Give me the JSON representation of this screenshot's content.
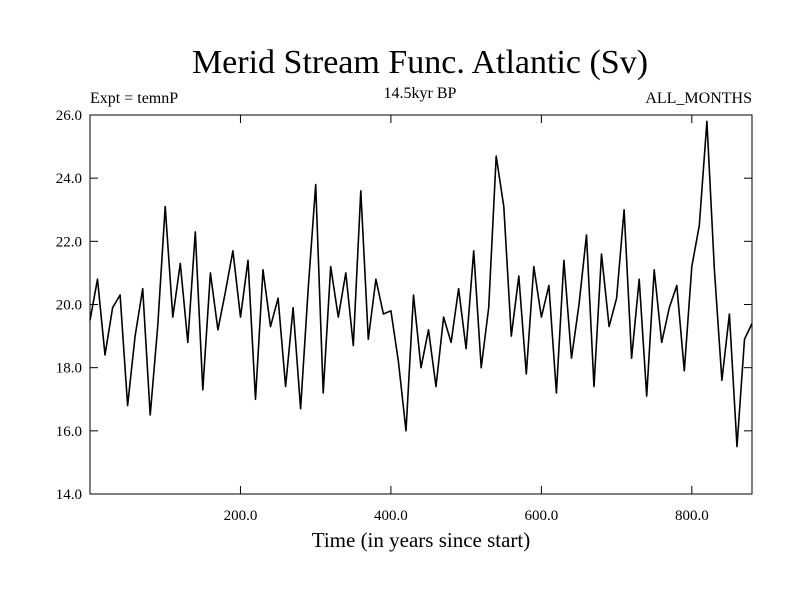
{
  "chart_data": {
    "type": "line",
    "title": "Merid Stream Func. Atlantic (Sv)",
    "subtitle": "14.5kyr BP",
    "left_label": "Expt = temnP",
    "right_label": "ALL_MONTHS",
    "xlabel": "Time (in years since start)",
    "ylabel": "",
    "xlim": [
      0,
      880
    ],
    "ylim": [
      14.0,
      26.0
    ],
    "x_ticks": [
      {
        "value": 200,
        "label": "200.0"
      },
      {
        "value": 400,
        "label": "400.0"
      },
      {
        "value": 600,
        "label": "600.0"
      },
      {
        "value": 800,
        "label": "800.0"
      }
    ],
    "y_ticks": [
      {
        "value": 14,
        "label": "14.0"
      },
      {
        "value": 16,
        "label": "16.0"
      },
      {
        "value": 18,
        "label": "18.0"
      },
      {
        "value": 20,
        "label": "20.0"
      },
      {
        "value": 22,
        "label": "22.0"
      },
      {
        "value": 24,
        "label": "24.0"
      },
      {
        "value": 26,
        "label": "26.0"
      }
    ],
    "grid": false,
    "line_color": "#000000",
    "series": [
      {
        "x": [
          0,
          10,
          20,
          30,
          40,
          50,
          60,
          70,
          80,
          90,
          100,
          110,
          120,
          130,
          140,
          150,
          160,
          170,
          180,
          190,
          200,
          210,
          220,
          230,
          240,
          250,
          260,
          270,
          280,
          290,
          300,
          310,
          320,
          330,
          340,
          350,
          360,
          370,
          380,
          390,
          400,
          410,
          420,
          430,
          440,
          450,
          460,
          470,
          480,
          490,
          500,
          510,
          520,
          530,
          540,
          550,
          560,
          570,
          580,
          590,
          600,
          610,
          620,
          630,
          640,
          650,
          660,
          670,
          680,
          690,
          700,
          710,
          720,
          730,
          740,
          750,
          760,
          770,
          780,
          790,
          800,
          810,
          820,
          830,
          840,
          850,
          860,
          870,
          880
        ],
        "values": [
          19.5,
          20.8,
          18.4,
          19.9,
          20.3,
          16.8,
          19.0,
          20.5,
          16.5,
          19.3,
          23.1,
          19.6,
          21.3,
          18.8,
          22.3,
          17.3,
          21.0,
          19.2,
          20.4,
          21.7,
          19.6,
          21.4,
          17.0,
          21.1,
          19.3,
          20.2,
          17.4,
          19.9,
          16.7,
          20.5,
          23.8,
          17.2,
          21.2,
          19.6,
          21.0,
          18.7,
          23.6,
          18.9,
          20.8,
          19.7,
          19.8,
          18.2,
          16.0,
          20.3,
          18.0,
          19.2,
          17.4,
          19.6,
          18.8,
          20.5,
          18.6,
          21.7,
          18.0,
          19.9,
          24.7,
          23.1,
          19.0,
          20.9,
          17.8,
          21.2,
          19.6,
          20.6,
          17.2,
          21.4,
          18.3,
          20.0,
          22.2,
          17.4,
          21.6,
          19.3,
          20.2,
          23.0,
          18.3,
          20.8,
          17.1,
          21.1,
          18.8,
          19.9,
          20.6,
          17.9,
          21.2,
          22.5,
          25.8,
          21.1,
          17.6,
          19.7,
          15.5,
          18.9,
          19.4
        ]
      }
    ]
  }
}
